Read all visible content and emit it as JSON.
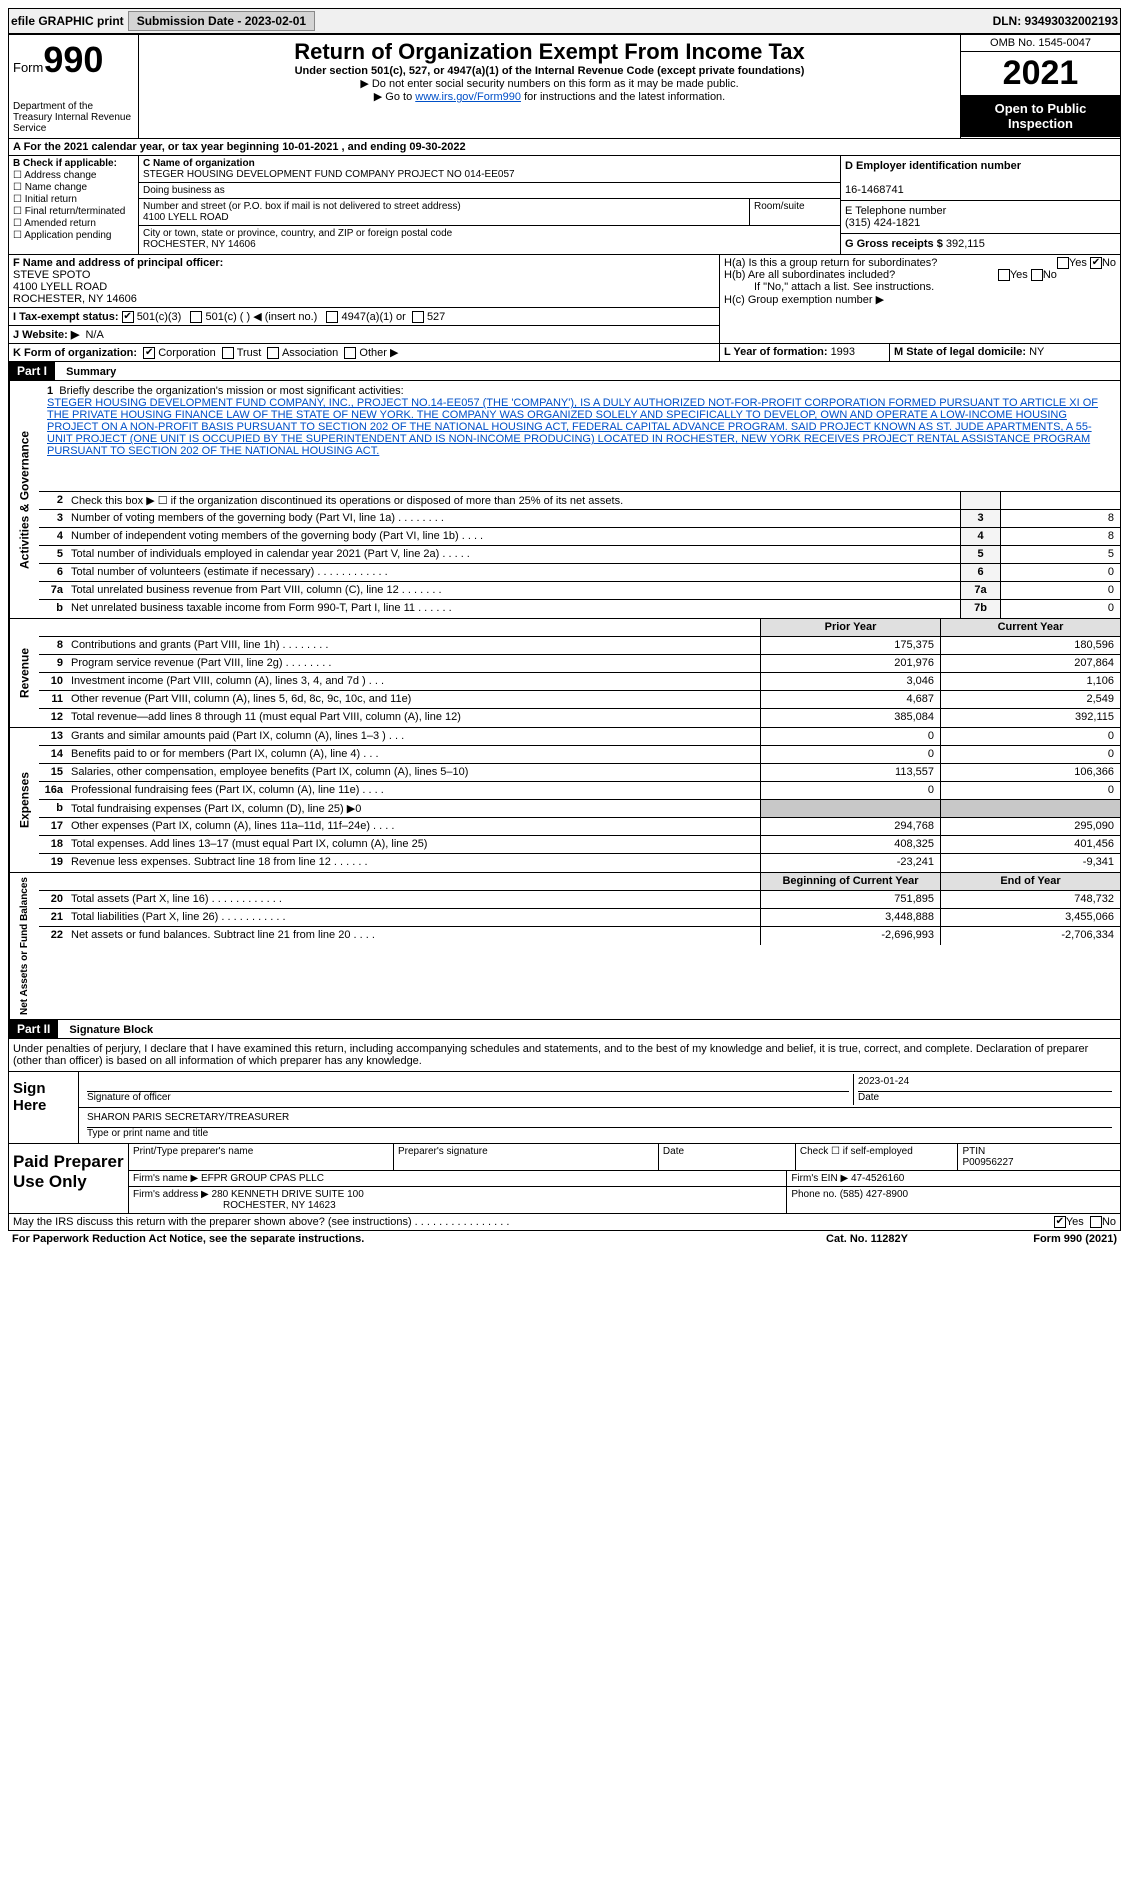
{
  "topbar": {
    "efile": "efile GRAPHIC print",
    "submission_label": "Submission Date - 2023-02-01",
    "dln": "DLN: 93493032002193"
  },
  "header": {
    "form": "Form",
    "form_num": "990",
    "dept": "Department of the Treasury\nInternal Revenue Service",
    "title": "Return of Organization Exempt From Income Tax",
    "sub1": "Under section 501(c), 527, or 4947(a)(1) of the Internal Revenue Code (except private foundations)",
    "sub2": "▶ Do not enter social security numbers on this form as it may be made public.",
    "sub3_pre": "▶ Go to ",
    "sub3_link": "www.irs.gov/Form990",
    "sub3_post": " for instructions and the latest information.",
    "omb": "OMB No. 1545-0047",
    "year": "2021",
    "pub": "Open to Public Inspection"
  },
  "period": "A For the 2021 calendar year, or tax year beginning 10-01-2021    , and ending 09-30-2022",
  "sectionB": {
    "label": "B Check if applicable:",
    "items": [
      "Address change",
      "Name change",
      "Initial return",
      "Final return/terminated",
      "Amended return",
      "Application pending"
    ]
  },
  "sectionC": {
    "name_label": "C Name of organization",
    "name": "STEGER HOUSING DEVELOPMENT FUND COMPANY PROJECT NO 014-EE057",
    "dba_label": "Doing business as",
    "dba": "",
    "addr_label": "Number and street (or P.O. box if mail is not delivered to street address)",
    "addr": "4100 LYELL ROAD",
    "room_label": "Room/suite",
    "city_label": "City or town, state or province, country, and ZIP or foreign postal code",
    "city": "ROCHESTER, NY  14606"
  },
  "sectionD": {
    "label": "D Employer identification number",
    "value": "16-1468741"
  },
  "sectionE": {
    "label": "E Telephone number",
    "value": "(315) 424-1821"
  },
  "sectionG": {
    "label": "G Gross receipts $ ",
    "value": "392,115"
  },
  "sectionF": {
    "label": "F  Name and address of principal officer:",
    "name": "STEVE SPOTO",
    "addr1": "4100 LYELL ROAD",
    "addr2": "ROCHESTER, NY  14606"
  },
  "sectionH": {
    "a_label": "H(a)  Is this a group return for subordinates?",
    "a_yes": "Yes",
    "a_no": "No",
    "b_label": "H(b)  Are all subordinates included?",
    "b_yes": "Yes",
    "b_no": "No",
    "b_note": "If \"No,\" attach a list. See instructions.",
    "c_label": "H(c)  Group exemption number ▶"
  },
  "sectionI": {
    "label": "I  Tax-exempt status:",
    "opt1": "501(c)(3)",
    "opt2": "501(c) (   ) ◀ (insert no.)",
    "opt3": "4947(a)(1) or",
    "opt4": "527"
  },
  "sectionJ": {
    "label": "J Website: ▶",
    "value": "N/A"
  },
  "sectionK": {
    "label": "K Form of organization:",
    "opts": [
      "Corporation",
      "Trust",
      "Association",
      "Other ▶"
    ]
  },
  "sectionL": {
    "label": "L Year of formation: ",
    "value": "1993"
  },
  "sectionM": {
    "label": "M State of legal domicile: ",
    "value": "NY"
  },
  "part1": {
    "header": "Part I",
    "title": "Summary"
  },
  "mission": {
    "num": "1",
    "label": "Briefly describe the organization's mission or most significant activities:",
    "text": "STEGER HOUSING DEVELOPMENT FUND COMPANY, INC., PROJECT NO.14-EE057 (THE 'COMPANY'), IS A DULY AUTHORIZED NOT-FOR-PROFIT CORPORATION FORMED PURSUANT TO ARTICLE XI OF THE PRIVATE HOUSING FINANCE LAW OF THE STATE OF NEW YORK. THE COMPANY WAS ORGANIZED SOLELY AND SPECIFICALLY TO DEVELOP, OWN AND OPERATE A LOW-INCOME HOUSING PROJECT ON A NON-PROFIT BASIS PURSUANT TO SECTION 202 OF THE NATIONAL HOUSING ACT, FEDERAL CAPITAL ADVANCE PROGRAM. SAID PROJECT KNOWN AS ST. JUDE APARTMENTS, A 55-UNIT PROJECT (ONE UNIT IS OCCUPIED BY THE SUPERINTENDENT AND IS NON-INCOME PRODUCING) LOCATED IN ROCHESTER, NEW YORK RECEIVES PROJECT RENTAL ASSISTANCE PROGRAM PURSUANT TO SECTION 202 OF THE NATIONAL HOUSING ACT."
  },
  "gov_rows": [
    {
      "num": "2",
      "desc": "Check this box ▶ ☐ if the organization discontinued its operations or disposed of more than 25% of its net assets.",
      "cell": "",
      "val": ""
    },
    {
      "num": "3",
      "desc": "Number of voting members of the governing body (Part VI, line 1a)  .   .   .   .   .   .   .   .",
      "cell": "3",
      "val": "8"
    },
    {
      "num": "4",
      "desc": "Number of independent voting members of the governing body (Part VI, line 1b)   .   .   .   .",
      "cell": "4",
      "val": "8"
    },
    {
      "num": "5",
      "desc": "Total number of individuals employed in calendar year 2021 (Part V, line 2a)   .   .   .   .   .",
      "cell": "5",
      "val": "5"
    },
    {
      "num": "6",
      "desc": "Total number of volunteers (estimate if necessary)   .   .   .   .   .   .   .   .   .   .   .   .",
      "cell": "6",
      "val": "0"
    },
    {
      "num": "7a",
      "desc": "Total unrelated business revenue from Part VIII, column (C), line 12   .   .   .   .   .   .   .",
      "cell": "7a",
      "val": "0"
    },
    {
      "num": "b",
      "desc": "Net unrelated business taxable income from Form 990-T, Part I, line 11   .   .   .   .   .   .",
      "cell": "7b",
      "val": "0"
    }
  ],
  "rev_head": {
    "prior": "Prior Year",
    "current": "Current Year"
  },
  "rev_rows": [
    {
      "num": "8",
      "desc": "Contributions and grants (Part VIII, line 1h)   .   .   .   .   .   .   .   .",
      "p": "175,375",
      "c": "180,596"
    },
    {
      "num": "9",
      "desc": "Program service revenue (Part VIII, line 2g)   .   .   .   .   .   .   .   .",
      "p": "201,976",
      "c": "207,864"
    },
    {
      "num": "10",
      "desc": "Investment income (Part VIII, column (A), lines 3, 4, and 7d )   .   .   .",
      "p": "3,046",
      "c": "1,106"
    },
    {
      "num": "11",
      "desc": "Other revenue (Part VIII, column (A), lines 5, 6d, 8c, 9c, 10c, and 11e)",
      "p": "4,687",
      "c": "2,549"
    },
    {
      "num": "12",
      "desc": "Total revenue—add lines 8 through 11 (must equal Part VIII, column (A), line 12)",
      "p": "385,084",
      "c": "392,115"
    }
  ],
  "exp_rows": [
    {
      "num": "13",
      "desc": "Grants and similar amounts paid (Part IX, column (A), lines 1–3 )   .   .   .",
      "p": "0",
      "c": "0"
    },
    {
      "num": "14",
      "desc": "Benefits paid to or for members (Part IX, column (A), line 4)   .   .   .",
      "p": "0",
      "c": "0"
    },
    {
      "num": "15",
      "desc": "Salaries, other compensation, employee benefits (Part IX, column (A), lines 5–10)",
      "p": "113,557",
      "c": "106,366"
    },
    {
      "num": "16a",
      "desc": "Professional fundraising fees (Part IX, column (A), line 11e)   .   .   .   .",
      "p": "0",
      "c": "0"
    },
    {
      "num": "b",
      "desc": "Total fundraising expenses (Part IX, column (D), line 25) ▶0",
      "p": "",
      "c": "",
      "shaded": true
    },
    {
      "num": "17",
      "desc": "Other expenses (Part IX, column (A), lines 11a–11d, 11f–24e)   .   .   .   .",
      "p": "294,768",
      "c": "295,090"
    },
    {
      "num": "18",
      "desc": "Total expenses. Add lines 13–17 (must equal Part IX, column (A), line 25)",
      "p": "408,325",
      "c": "401,456"
    },
    {
      "num": "19",
      "desc": "Revenue less expenses. Subtract line 18 from line 12   .   .   .   .   .   .",
      "p": "-23,241",
      "c": "-9,341"
    }
  ],
  "na_head": {
    "begin": "Beginning of Current Year",
    "end": "End of Year"
  },
  "na_rows": [
    {
      "num": "20",
      "desc": "Total assets (Part X, line 16)   .   .   .   .   .   .   .   .   .   .   .   .",
      "p": "751,895",
      "c": "748,732"
    },
    {
      "num": "21",
      "desc": "Total liabilities (Part X, line 26)   .   .   .   .   .   .   .   .   .   .   .",
      "p": "3,448,888",
      "c": "3,455,066"
    },
    {
      "num": "22",
      "desc": "Net assets or fund balances. Subtract line 21 from line 20   .   .   .   .",
      "p": "-2,696,993",
      "c": "-2,706,334"
    }
  ],
  "side_labels": {
    "gov": "Activities & Governance",
    "rev": "Revenue",
    "exp": "Expenses",
    "na": "Net Assets or Fund Balances"
  },
  "part2": {
    "header": "Part II",
    "title": "Signature Block"
  },
  "sig": {
    "decl": "Under penalties of perjury, I declare that I have examined this return, including accompanying schedules and statements, and to the best of my knowledge and belief, it is true, correct, and complete. Declaration of preparer (other than officer) is based on all information of which preparer has any knowledge.",
    "sign_here": "Sign Here",
    "sig_officer": "Signature of officer",
    "date_label": "Date",
    "date": "2023-01-24",
    "name": "SHARON PARIS  SECRETARY/TREASURER",
    "name_label": "Type or print name and title"
  },
  "prep": {
    "title": "Paid Preparer Use Only",
    "h1": "Print/Type preparer's name",
    "h2": "Preparer's signature",
    "h3": "Date",
    "h4_pre": "Check ☐ if self-employed",
    "h5": "PTIN",
    "ptin": "P00956227",
    "firm_label": "Firm's name    ▶",
    "firm": "EFPR GROUP CPAS PLLC",
    "ein_label": "Firm's EIN ▶",
    "ein": "47-4526160",
    "addr_label": "Firm's address ▶",
    "addr": "280 KENNETH DRIVE SUITE 100",
    "addr2": "ROCHESTER, NY  14623",
    "phone_label": "Phone no.",
    "phone": "(585) 427-8900"
  },
  "discuss": {
    "q": "May the IRS discuss this return with the preparer shown above? (see instructions)   .   .   .   .   .   .   .   .   .   .   .   .   .   .   .   .",
    "yes": "Yes",
    "no": "No"
  },
  "footer": {
    "left": "For Paperwork Reduction Act Notice, see the separate instructions.",
    "mid": "Cat. No. 11282Y",
    "right": "Form 990 (2021)"
  }
}
